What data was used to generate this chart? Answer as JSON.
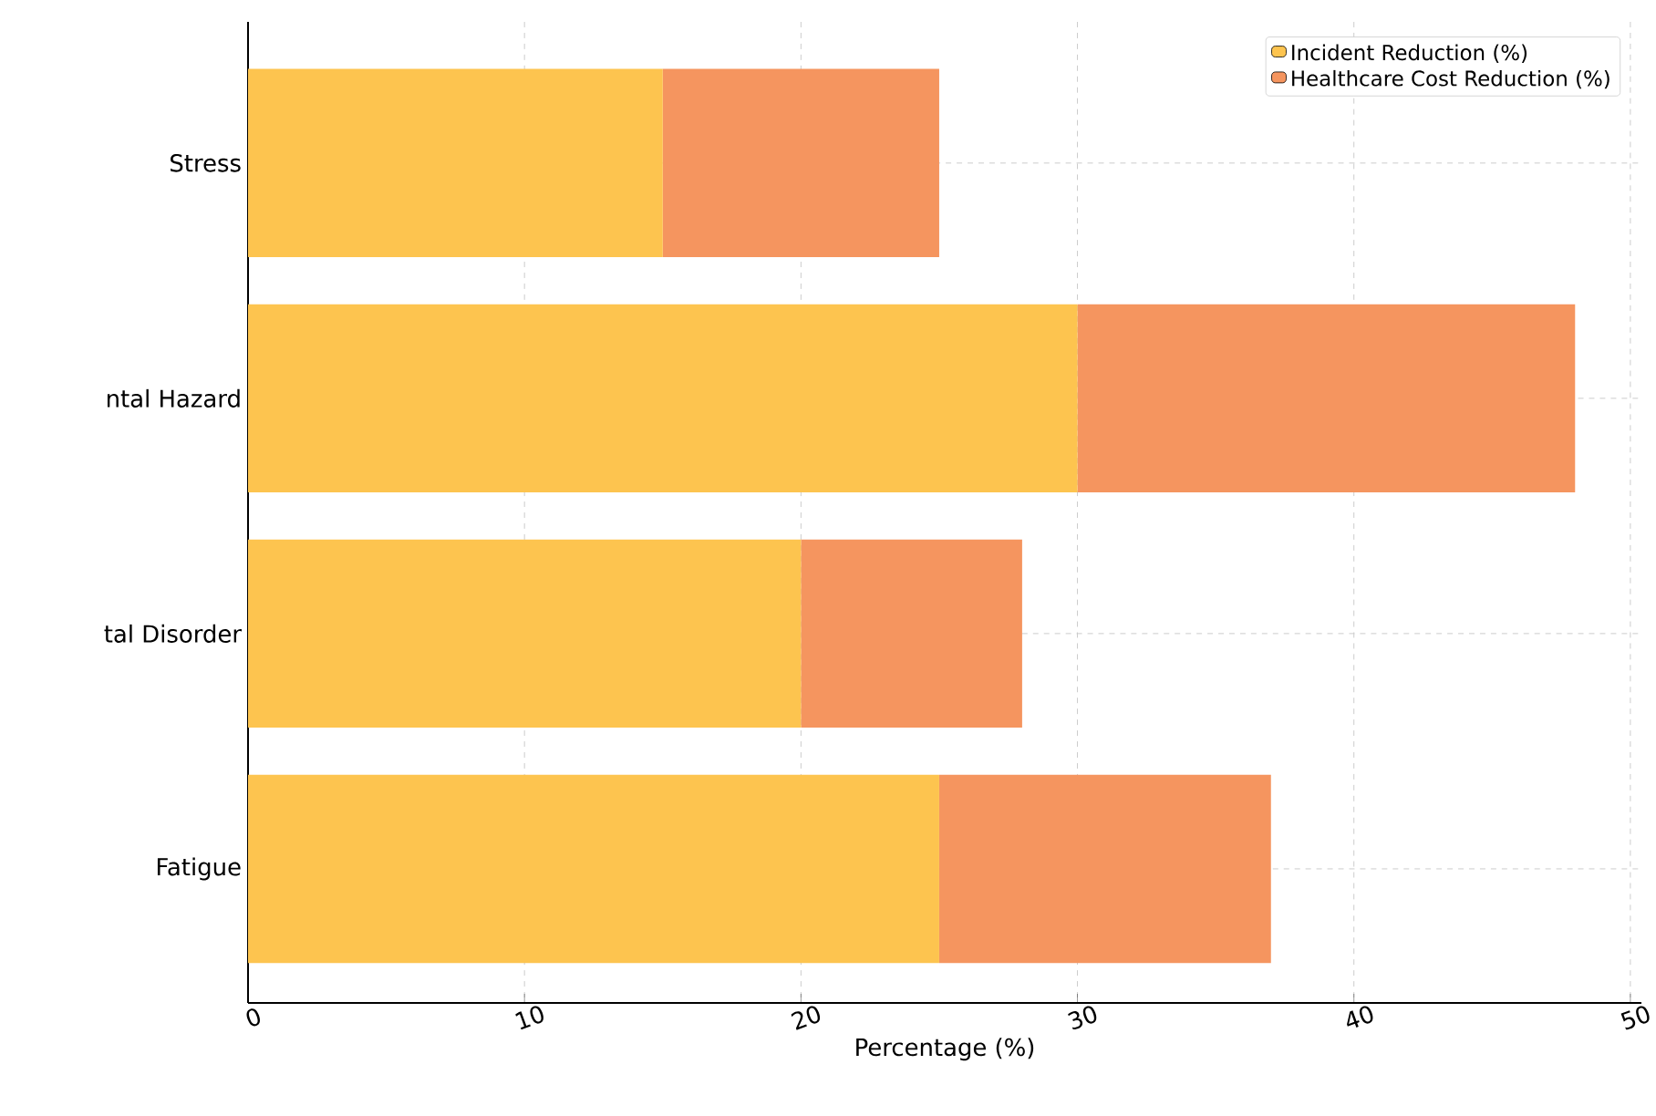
{
  "chart_data": {
    "type": "bar",
    "orientation": "horizontal",
    "stacked": true,
    "xlabel": "Percentage (%)",
    "categories": [
      "Stress",
      "ntal Hazard",
      "tal Disorder",
      "Fatigue"
    ],
    "series": [
      {
        "name": "Incident Reduction (%)",
        "color": "#fdc44f",
        "values": [
          15,
          30,
          20,
          25
        ]
      },
      {
        "name": "Healthcare Cost Reduction (%)",
        "color": "#f5955f",
        "values": [
          10,
          18,
          8,
          12
        ]
      }
    ],
    "xlim": [
      0,
      50.4
    ],
    "xticks": [
      0,
      10,
      20,
      30,
      40,
      50
    ],
    "grid": true,
    "legend": "top right"
  }
}
